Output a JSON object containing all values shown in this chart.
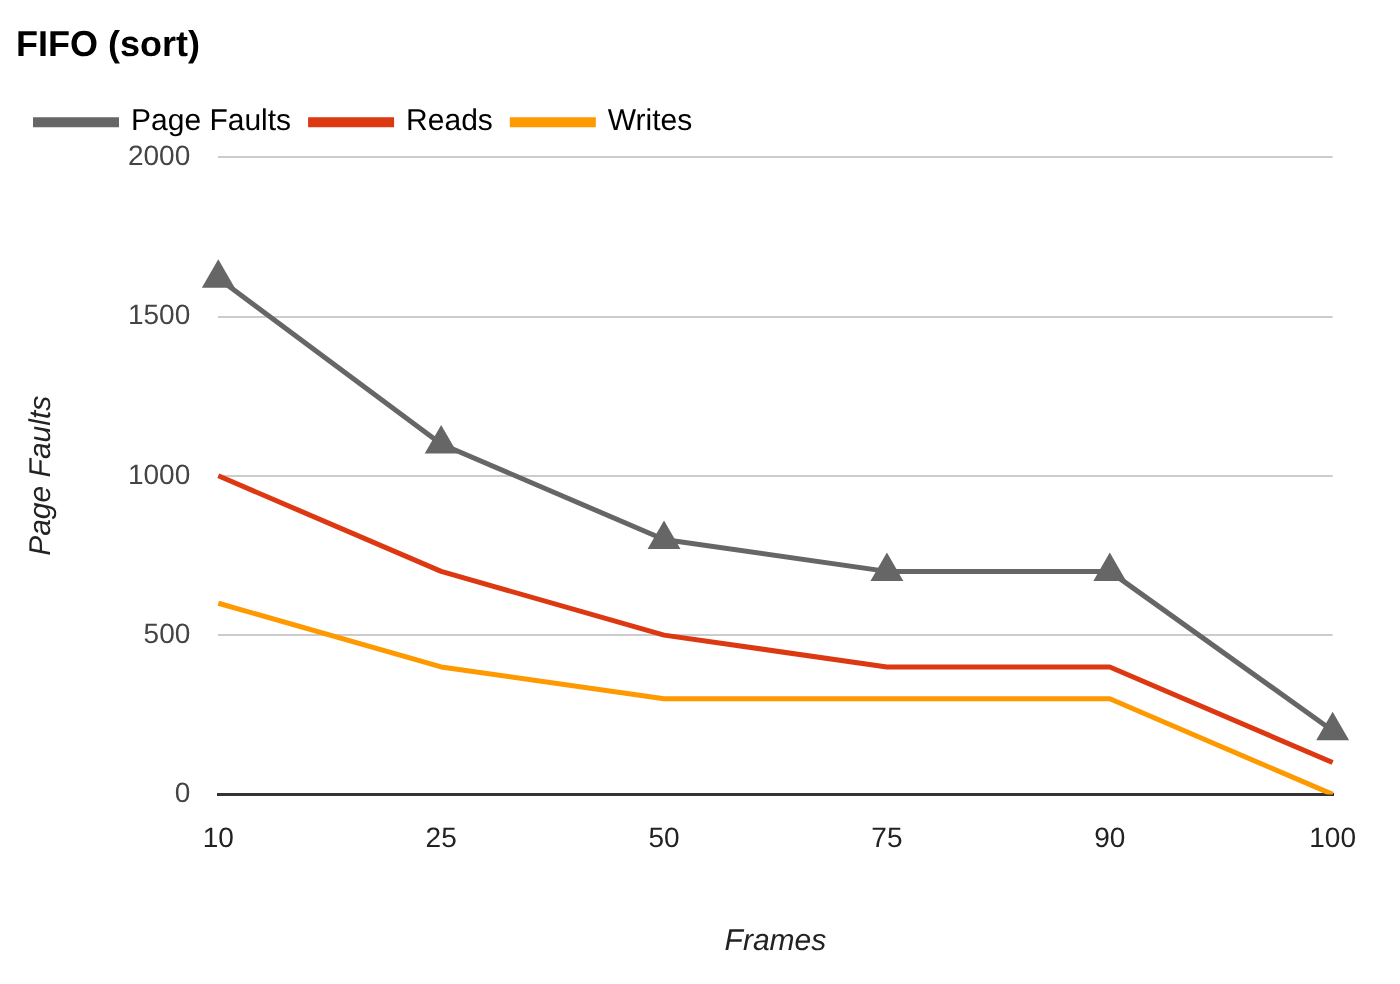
{
  "chart_data": {
    "type": "line",
    "title": "FIFO (sort)",
    "xlabel": "Frames",
    "ylabel": "Page Faults",
    "categories": [
      "10",
      "25",
      "50",
      "75",
      "90",
      "100"
    ],
    "series": [
      {
        "name": "Page Faults",
        "color": "#666666",
        "marker": "triangle",
        "values": [
          1620,
          1100,
          800,
          700,
          700,
          200
        ]
      },
      {
        "name": "Reads",
        "color": "#dc3912",
        "marker": "none",
        "values": [
          1000,
          700,
          500,
          400,
          400,
          100
        ]
      },
      {
        "name": "Writes",
        "color": "#ff9900",
        "marker": "none",
        "values": [
          600,
          400,
          300,
          300,
          300,
          0
        ]
      }
    ],
    "ylim": [
      0,
      2000
    ],
    "yticks": [
      0,
      500,
      1000,
      1500,
      2000
    ],
    "grid": "y",
    "legend": "top left"
  }
}
